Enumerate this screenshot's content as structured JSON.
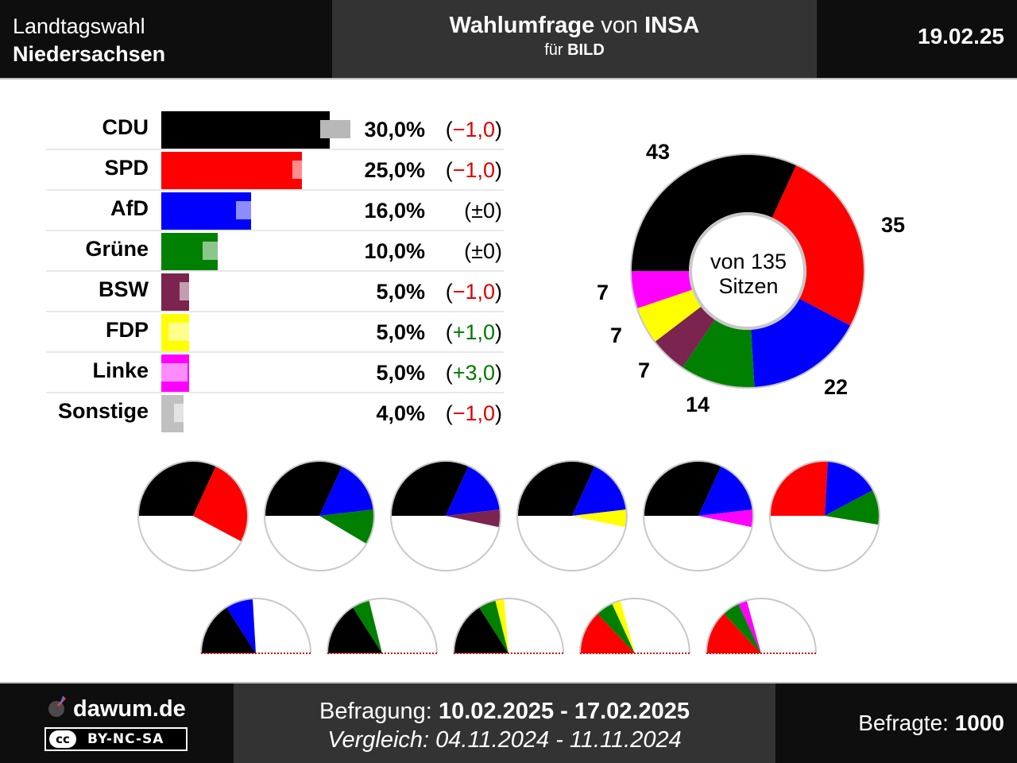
{
  "header": {
    "election_line1": "Landtagswahl",
    "election_line2": "Niedersachsen",
    "poll_bold1": "Wahlumfrage",
    "poll_mid": " von ",
    "poll_bold2": "INSA",
    "client_prefix": "für ",
    "client": "BILD",
    "date": "19.02.25"
  },
  "chart_data": [
    {
      "type": "bar",
      "orientation": "horizontal",
      "categories": [
        "CDU",
        "SPD",
        "AfD",
        "Grüne",
        "BSW",
        "FDP",
        "Linke",
        "Sonstige"
      ],
      "values": [
        30.0,
        25.0,
        16.0,
        10.0,
        5.0,
        5.0,
        5.0,
        4.0
      ],
      "previous_values": [
        31.0,
        26.0,
        16.0,
        10.0,
        6.0,
        4.0,
        2.0,
        5.0
      ],
      "value_labels": [
        "30,0%",
        "25,0%",
        "16,0%",
        "10,0%",
        "5,0%",
        "5,0%",
        "5,0%",
        "4,0%"
      ],
      "change_labels": [
        "(−1,0)",
        "(−1,0)",
        "(±0)",
        "(±0)",
        "(−1,0)",
        "(+1,0)",
        "(+3,0)",
        "(−1,0)"
      ],
      "change_signs": [
        "neg",
        "neg",
        "zero",
        "zero",
        "neg",
        "pos",
        "pos",
        "neg"
      ],
      "colors": [
        "#000000",
        "#ff0000",
        "#0000ff",
        "#008000",
        "#7b2450",
        "#ffff00",
        "#ff00ff",
        "#c0c0c0"
      ],
      "xlim": [
        0,
        30
      ]
    },
    {
      "type": "pie",
      "subtype": "donut",
      "center_line1": "von 135",
      "center_line2": "Sitzen",
      "categories": [
        "CDU",
        "SPD",
        "AfD",
        "Grüne",
        "BSW",
        "FDP",
        "Linke"
      ],
      "values": [
        43,
        35,
        22,
        14,
        7,
        7,
        7
      ],
      "labels": [
        "43",
        "35",
        "22",
        "14",
        "7",
        "7",
        "7"
      ],
      "colors": [
        "#000000",
        "#ff0000",
        "#0000ff",
        "#008000",
        "#7b2450",
        "#ffff00",
        "#ff00ff"
      ]
    }
  ],
  "coalitions": {
    "total_seats": 135,
    "full": [
      {
        "parties": [
          "CDU",
          "SPD"
        ],
        "seats": [
          43,
          35
        ]
      },
      {
        "parties": [
          "CDU",
          "AfD",
          "Grüne"
        ],
        "seats": [
          43,
          22,
          14
        ]
      },
      {
        "parties": [
          "CDU",
          "AfD",
          "BSW"
        ],
        "seats": [
          43,
          22,
          7
        ]
      },
      {
        "parties": [
          "CDU",
          "AfD",
          "FDP"
        ],
        "seats": [
          43,
          22,
          7
        ]
      },
      {
        "parties": [
          "CDU",
          "AfD",
          "Linke"
        ],
        "seats": [
          43,
          22,
          7
        ]
      },
      {
        "parties": [
          "SPD",
          "AfD",
          "Grüne"
        ],
        "seats": [
          35,
          22,
          14
        ]
      }
    ],
    "half": [
      {
        "parties": [
          "CDU",
          "AfD"
        ],
        "seats": [
          43,
          22
        ]
      },
      {
        "parties": [
          "CDU",
          "Grüne"
        ],
        "seats": [
          43,
          14
        ]
      },
      {
        "parties": [
          "CDU",
          "Grüne",
          "FDP"
        ],
        "seats": [
          43,
          14,
          7
        ]
      },
      {
        "parties": [
          "SPD",
          "Grüne",
          "FDP"
        ],
        "seats": [
          35,
          14,
          7
        ]
      },
      {
        "parties": [
          "SPD",
          "Grüne",
          "Linke"
        ],
        "seats": [
          35,
          14,
          7
        ]
      }
    ]
  },
  "footer": {
    "brand": "dawum.de",
    "license_left": "cc",
    "license": "BY-NC-SA",
    "survey_label": "Befragung: ",
    "survey_period": "10.02.2025 - 17.02.2025",
    "compare_label": "Vergleich: ",
    "compare_period": "04.11.2024 - 11.11.2024",
    "respondents_label": "Befragte: ",
    "respondents": "1000"
  }
}
